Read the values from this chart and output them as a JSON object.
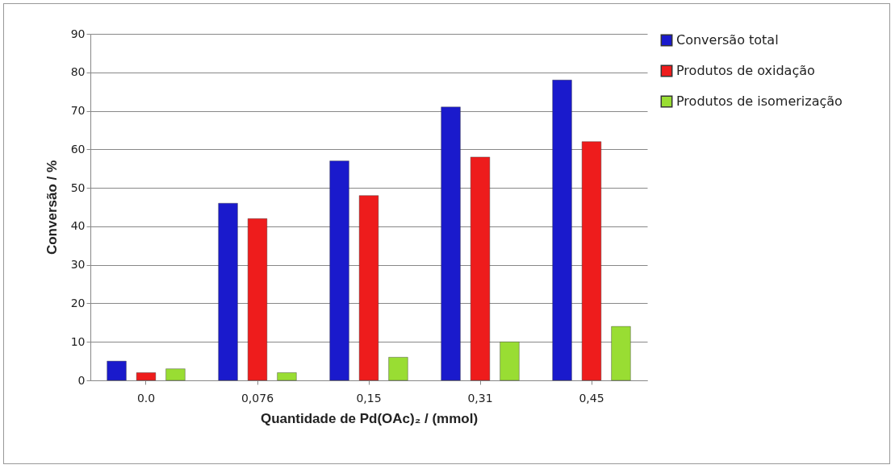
{
  "chart_data": {
    "type": "bar",
    "xlabel": "Quantidade de Pd(OAc)₂ / (mmol)",
    "ylabel": "Conversão / %",
    "categories": [
      "0.0",
      "0,076",
      "0,15",
      "0,31",
      "0,45"
    ],
    "series": [
      {
        "name": "Conversão total",
        "color": "#1a1acc",
        "values": [
          5,
          46,
          57,
          71,
          78
        ]
      },
      {
        "name": "Produtos de oxidação",
        "color": "#ee1c1c",
        "values": [
          2,
          42,
          48,
          58,
          62
        ]
      },
      {
        "name": "Produtos de isomerização",
        "color": "#99dd33",
        "values": [
          3,
          2,
          6,
          10,
          14
        ]
      }
    ],
    "ylim": [
      0,
      90
    ],
    "yticks": [
      0,
      10,
      20,
      30,
      40,
      50,
      60,
      70,
      80,
      90
    ],
    "grid": "y",
    "legend": "right"
  }
}
